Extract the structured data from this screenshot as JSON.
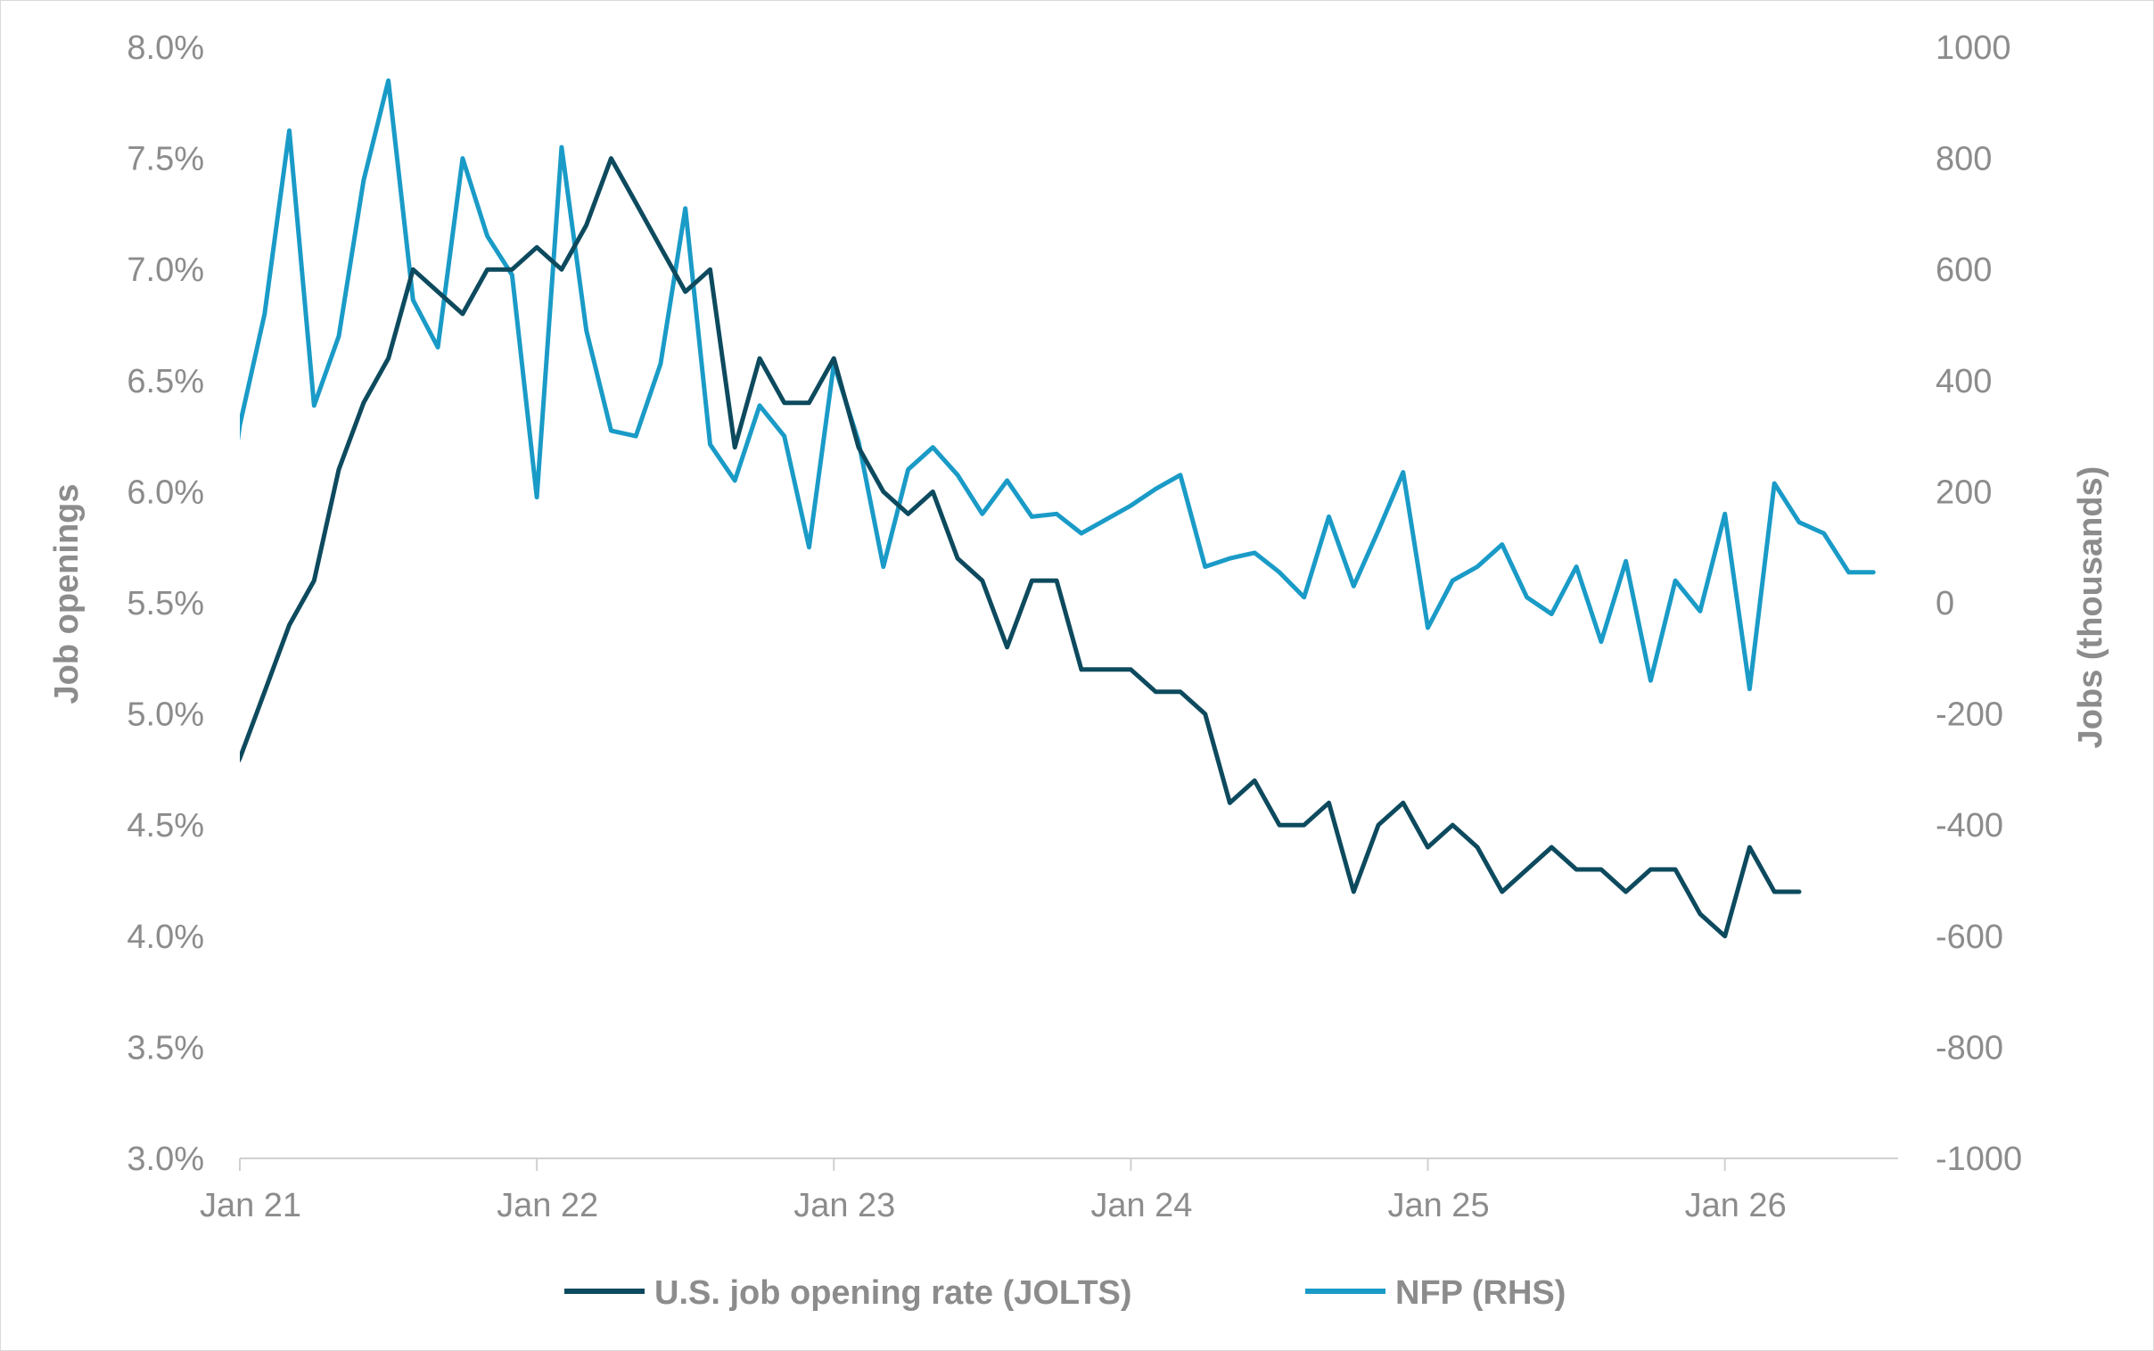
{
  "chart_data": {
    "type": "line",
    "title": "",
    "xlabel": "",
    "ylabel": "Job openings",
    "y2label": "Jobs (thousands)",
    "x_tick_labels": [
      "Jan 21",
      "Jan 22",
      "Jan 23",
      "Jan 24",
      "Jan 25",
      "Jan 26"
    ],
    "y_tick_labels": [
      "3.0%",
      "3.5%",
      "4.0%",
      "4.5%",
      "5.0%",
      "5.5%",
      "6.0%",
      "6.5%",
      "7.0%",
      "7.5%",
      "8.0%"
    ],
    "y2_tick_labels": [
      "-1000",
      "-800",
      "-600",
      "-400",
      "-200",
      "0",
      "200",
      "400",
      "600",
      "800",
      "1000"
    ],
    "ylim": [
      3.0,
      8.0
    ],
    "y2lim": [
      -1000,
      1000
    ],
    "x_start": "2021-01",
    "x_end": "2026-08",
    "grid": false,
    "legend_position": "bottom",
    "series": [
      {
        "name": "U.S. job opening rate (JOLTS)",
        "axis": "left",
        "color": "#0d4a5e",
        "start": "2020-12",
        "values": [
          4.6,
          4.8,
          5.1,
          5.4,
          5.6,
          6.1,
          6.4,
          6.6,
          7.0,
          6.9,
          6.8,
          7.0,
          7.0,
          7.1,
          7.0,
          7.2,
          7.5,
          7.3,
          7.1,
          6.9,
          7.0,
          6.2,
          6.6,
          6.4,
          6.4,
          6.6,
          6.2,
          6.0,
          5.9,
          6.0,
          5.7,
          5.6,
          5.3,
          5.6,
          5.6,
          5.2,
          5.2,
          5.2,
          5.1,
          5.1,
          5.0,
          4.6,
          4.7,
          4.5,
          4.5,
          4.6,
          4.2,
          4.5,
          4.6,
          4.4,
          4.5,
          4.4,
          4.2,
          4.3,
          4.4,
          4.3,
          4.3,
          4.2,
          4.3,
          4.3,
          4.1,
          4.0,
          4.4,
          4.2,
          4.2
        ]
      },
      {
        "name": "NFP (RHS)",
        "axis": "right",
        "color": "#1a9bc7",
        "start": "2020-12",
        "values": [
          0,
          320,
          520,
          850,
          355,
          480,
          760,
          940,
          545,
          460,
          800,
          660,
          590,
          190,
          820,
          490,
          310,
          300,
          430,
          710,
          285,
          220,
          355,
          300,
          100,
          430,
          290,
          65,
          240,
          280,
          230,
          160,
          220,
          155,
          160,
          125,
          150,
          175,
          205,
          230,
          65,
          80,
          90,
          55,
          10,
          155,
          30,
          130,
          235,
          -45,
          40,
          65,
          105,
          10,
          -20,
          65,
          -70,
          75,
          -140,
          40,
          -15,
          160,
          -155,
          215,
          145,
          125,
          55,
          55
        ]
      }
    ]
  }
}
